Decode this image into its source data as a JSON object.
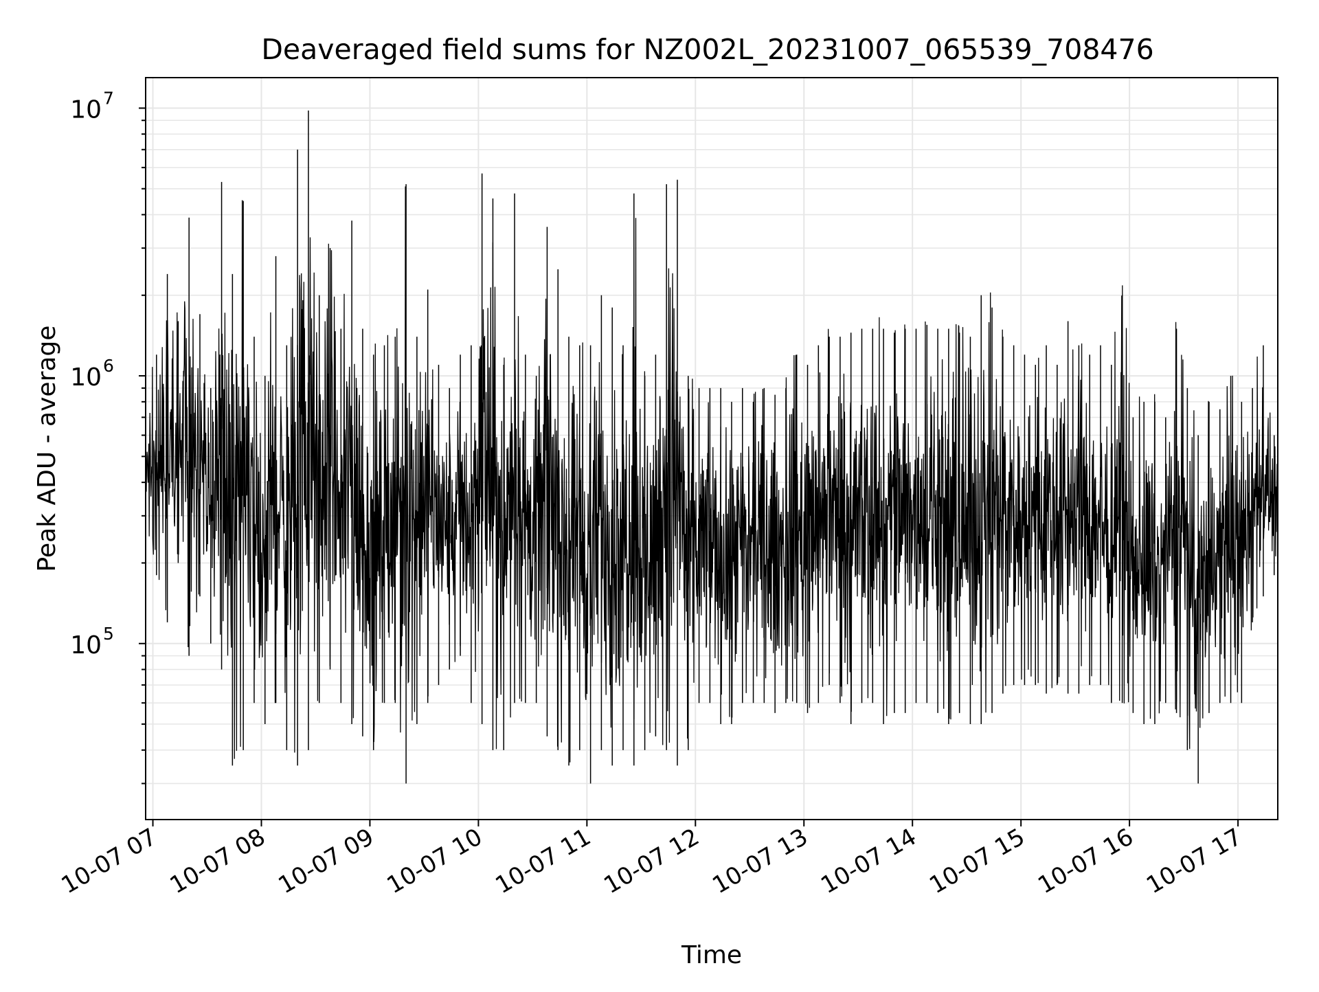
{
  "chart_data": {
    "type": "line",
    "title": "Deaveraged field sums for NZ002L_20231007_065539_708476",
    "xlabel": "Time",
    "ylabel": "Peak ADU - average",
    "xscale": "time",
    "yscale": "log",
    "xlim": [
      "2023-10-07 06:56",
      "2023-10-07 17:22"
    ],
    "ylim": [
      22000,
      13000000
    ],
    "grid": true,
    "legend": "none",
    "x_ticks": [
      "10-07 07",
      "10-07 08",
      "10-07 09",
      "10-07 10",
      "10-07 11",
      "10-07 12",
      "10-07 13",
      "10-07 14",
      "10-07 15",
      "10-07 16",
      "10-07 17"
    ],
    "y_ticks": [
      {
        "base": "10",
        "exp": "5",
        "value": 100000
      },
      {
        "base": "10",
        "exp": "6",
        "value": 1000000
      },
      {
        "base": "10",
        "exp": "7",
        "value": 10000000
      }
    ],
    "line_color": "#000000",
    "grid_color": "#e6e6e6",
    "series": [
      {
        "x": [
          "2023-10-07 06:56",
          "2023-10-07 07:02",
          "2023-10-07 07:08",
          "2023-10-07 07:14",
          "2023-10-07 07:20",
          "2023-10-07 07:26",
          "2023-10-07 07:32",
          "2023-10-07 07:38",
          "2023-10-07 07:44",
          "2023-10-07 07:50",
          "2023-10-07 07:56",
          "2023-10-07 08:02",
          "2023-10-07 08:08",
          "2023-10-07 08:14",
          "2023-10-07 08:20",
          "2023-10-07 08:26",
          "2023-10-07 08:32",
          "2023-10-07 08:38",
          "2023-10-07 08:44",
          "2023-10-07 08:50",
          "2023-10-07 08:56",
          "2023-10-07 09:02",
          "2023-10-07 09:08",
          "2023-10-07 09:14",
          "2023-10-07 09:20",
          "2023-10-07 09:26",
          "2023-10-07 09:32",
          "2023-10-07 09:38",
          "2023-10-07 09:44",
          "2023-10-07 09:50",
          "2023-10-07 09:56",
          "2023-10-07 10:02",
          "2023-10-07 10:08",
          "2023-10-07 10:14",
          "2023-10-07 10:20",
          "2023-10-07 10:26",
          "2023-10-07 10:32",
          "2023-10-07 10:38",
          "2023-10-07 10:44",
          "2023-10-07 10:50",
          "2023-10-07 10:56",
          "2023-10-07 11:02",
          "2023-10-07 11:08",
          "2023-10-07 11:14",
          "2023-10-07 11:20",
          "2023-10-07 11:26",
          "2023-10-07 11:32",
          "2023-10-07 11:38",
          "2023-10-07 11:44",
          "2023-10-07 11:50",
          "2023-10-07 11:56",
          "2023-10-07 12:02",
          "2023-10-07 12:08",
          "2023-10-07 12:14",
          "2023-10-07 12:20",
          "2023-10-07 12:26",
          "2023-10-07 12:32",
          "2023-10-07 12:38",
          "2023-10-07 12:44",
          "2023-10-07 12:50",
          "2023-10-07 12:56",
          "2023-10-07 13:02",
          "2023-10-07 13:08",
          "2023-10-07 13:14",
          "2023-10-07 13:20",
          "2023-10-07 13:26",
          "2023-10-07 13:32",
          "2023-10-07 13:38",
          "2023-10-07 13:44",
          "2023-10-07 13:50",
          "2023-10-07 13:56",
          "2023-10-07 14:02",
          "2023-10-07 14:08",
          "2023-10-07 14:14",
          "2023-10-07 14:20",
          "2023-10-07 14:26",
          "2023-10-07 14:32",
          "2023-10-07 14:38",
          "2023-10-07 14:44",
          "2023-10-07 14:50",
          "2023-10-07 14:56",
          "2023-10-07 15:02",
          "2023-10-07 15:08",
          "2023-10-07 15:14",
          "2023-10-07 15:20",
          "2023-10-07 15:26",
          "2023-10-07 15:32",
          "2023-10-07 15:38",
          "2023-10-07 15:44",
          "2023-10-07 15:50",
          "2023-10-07 15:56",
          "2023-10-07 16:02",
          "2023-10-07 16:08",
          "2023-10-07 16:14",
          "2023-10-07 16:20",
          "2023-10-07 16:26",
          "2023-10-07 16:32",
          "2023-10-07 16:38",
          "2023-10-07 16:44",
          "2023-10-07 16:50",
          "2023-10-07 16:56",
          "2023-10-07 17:02",
          "2023-10-07 17:08",
          "2023-10-07 17:14",
          "2023-10-07 17:20"
        ],
        "high": [
          700000,
          1200000,
          2400000,
          1600000,
          3900000,
          1700000,
          900000,
          5300000,
          2400000,
          4500000,
          1400000,
          1000000,
          2800000,
          1300000,
          7000000,
          9800000,
          2000000,
          3000000,
          1500000,
          3800000,
          1500000,
          1200000,
          1300000,
          1400000,
          5200000,
          1400000,
          2100000,
          1100000,
          900000,
          1200000,
          1300000,
          5700000,
          4600000,
          1100000,
          4800000,
          1200000,
          1000000,
          3600000,
          2500000,
          1400000,
          1300000,
          1300000,
          2000000,
          1800000,
          1300000,
          4800000,
          1000000,
          1200000,
          5200000,
          5400000,
          1000000,
          900000,
          900000,
          900000,
          800000,
          900000,
          800000,
          900000,
          850000,
          900000,
          1200000,
          1100000,
          1300000,
          1400000,
          1400000,
          1450000,
          1500000,
          1500000,
          1500000,
          1450000,
          1500000,
          1500000,
          1550000,
          1500000,
          1500000,
          1450000,
          1400000,
          2000000,
          1800000,
          1400000,
          1300000,
          1200000,
          1100000,
          1300000,
          1100000,
          1600000,
          1300000,
          1200000,
          1300000,
          1100000,
          2000000,
          700000,
          800000,
          800000,
          700000,
          1500000,
          900000,
          600000,
          800000,
          750000,
          1000000,
          800000,
          900000,
          1300000,
          600000
        ],
        "low": [
          260000,
          180000,
          120000,
          200000,
          90000,
          150000,
          100000,
          80000,
          35000,
          40000,
          60000,
          50000,
          60000,
          40000,
          35000,
          40000,
          60000,
          80000,
          60000,
          50000,
          45000,
          40000,
          60000,
          60000,
          30000,
          50000,
          60000,
          70000,
          80000,
          90000,
          60000,
          50000,
          40000,
          40000,
          60000,
          60000,
          60000,
          45000,
          40000,
          35000,
          40000,
          30000,
          40000,
          35000,
          40000,
          35000,
          40000,
          45000,
          40000,
          35000,
          40000,
          60000,
          60000,
          50000,
          50000,
          60000,
          60000,
          60000,
          55000,
          60000,
          60000,
          55000,
          60000,
          70000,
          60000,
          50000,
          60000,
          60000,
          50000,
          55000,
          55000,
          60000,
          60000,
          55000,
          50000,
          55000,
          50000,
          50000,
          55000,
          65000,
          70000,
          70000,
          70000,
          65000,
          70000,
          65000,
          65000,
          70000,
          70000,
          60000,
          60000,
          55000,
          50000,
          50000,
          60000,
          55000,
          40000,
          30000,
          55000,
          60000,
          60000,
          60000,
          120000,
          150000,
          180000
        ]
      }
    ]
  }
}
